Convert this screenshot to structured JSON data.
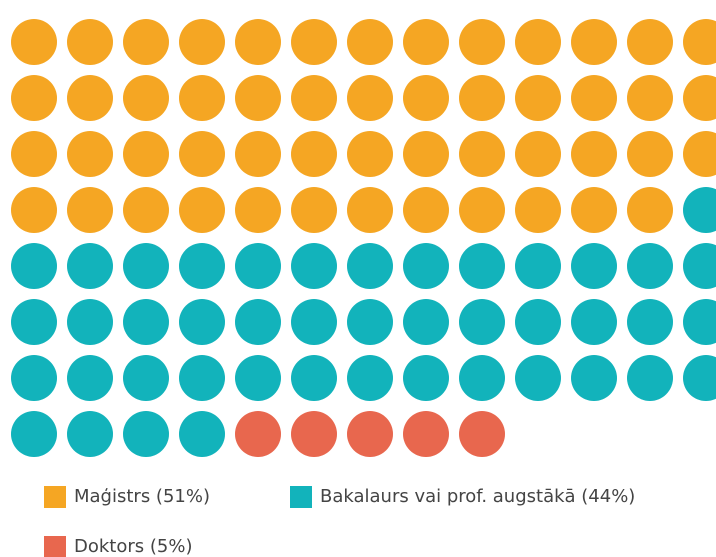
{
  "chart_data": {
    "type": "waffle",
    "series": [
      {
        "name": "Maģistrs (51%)",
        "color": "#f5a623",
        "values": [
          51
        ]
      },
      {
        "name": "Bakalaurs vai prof. augstākā (44%)",
        "color": "#12b3bb",
        "values": [
          44
        ]
      },
      {
        "name": "Doktors (5%)",
        "color": "#e8674e",
        "values": [
          5
        ]
      }
    ]
  }
}
